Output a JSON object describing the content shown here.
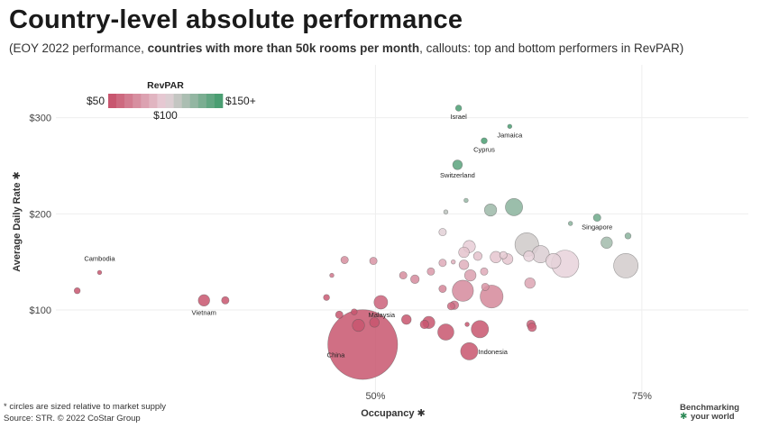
{
  "title": "Country-level absolute performance",
  "subtitle_plain": "(EOY 2022 performance, ",
  "subtitle_bold": "countries with more than 50k rooms per  month",
  "subtitle_tail": ", callouts: top and bottom performers in RevPAR)",
  "footnote_1": "* circles are sized relative to market supply",
  "footnote_2": "Source: STR. © 2022 CoStar Group",
  "brand_line1": "Benchmarking",
  "brand_line2": "your world",
  "brand_mark": "✱",
  "colors": {
    "low": "#c8566f",
    "mid": "#e8d2da",
    "high": "#4a9e72"
  },
  "legend": {
    "title": "RevPAR",
    "min_label": "$50",
    "mid_label": "$100",
    "max_label": "$150+"
  },
  "chart_data": {
    "type": "scatter",
    "title": "Country-level absolute performance",
    "xlabel": "Occupancy ✱",
    "ylabel": "Average Daily Rate ✱",
    "xlim": [
      20,
      85
    ],
    "ylim": [
      10,
      355
    ],
    "x_ticks": [
      50,
      75
    ],
    "x_tick_labels": [
      "50%",
      "75%"
    ],
    "y_ticks": [
      100,
      200,
      300
    ],
    "y_tick_labels": [
      "$100",
      "$200",
      "$300"
    ],
    "grid": true,
    "size_meaning": "market supply",
    "color_meaning": "RevPAR",
    "points": [
      {
        "label": "Israel",
        "x": 57.8,
        "y": 310,
        "s": 2,
        "r": 180
      },
      {
        "label": "Jamaica",
        "x": 62.6,
        "y": 291,
        "s": 1,
        "r": 182
      },
      {
        "label": "Cyprus",
        "x": 60.2,
        "y": 276,
        "s": 2,
        "r": 166
      },
      {
        "label": "Switzerland",
        "x": 57.7,
        "y": 251,
        "s": 5,
        "r": 145
      },
      {
        "label": "",
        "x": 58.5,
        "y": 214,
        "s": 1,
        "r": 126
      },
      {
        "label": "",
        "x": 56.6,
        "y": 202,
        "s": 1,
        "r": 114
      },
      {
        "label": "",
        "x": 60.8,
        "y": 204,
        "s": 8,
        "r": 124
      },
      {
        "label": "",
        "x": 63.0,
        "y": 207,
        "s": 16,
        "r": 130
      },
      {
        "label": "Singapore",
        "x": 70.8,
        "y": 196,
        "s": 3,
        "r": 139
      },
      {
        "label": "",
        "x": 68.3,
        "y": 190,
        "s": 1,
        "r": 130
      },
      {
        "label": "",
        "x": 73.7,
        "y": 177,
        "s": 2,
        "r": 130
      },
      {
        "label": "",
        "x": 71.7,
        "y": 170,
        "s": 7,
        "r": 122
      },
      {
        "label": "",
        "x": 64.2,
        "y": 168,
        "s": 30,
        "r": 108
      },
      {
        "label": "",
        "x": 65.5,
        "y": 158,
        "s": 16,
        "r": 104
      },
      {
        "label": "",
        "x": 64.4,
        "y": 156,
        "s": 6,
        "r": 100
      },
      {
        "label": "",
        "x": 66.7,
        "y": 151,
        "s": 12,
        "r": 101
      },
      {
        "label": "",
        "x": 67.8,
        "y": 148,
        "s": 40,
        "r": 100
      },
      {
        "label": "",
        "x": 73.5,
        "y": 146,
        "s": 32,
        "r": 107
      },
      {
        "label": "",
        "x": 59.6,
        "y": 156,
        "s": 4,
        "r": 93
      },
      {
        "label": "",
        "x": 61.3,
        "y": 155,
        "s": 7,
        "r": 95
      },
      {
        "label": "",
        "x": 62.0,
        "y": 157,
        "s": 3,
        "r": 97
      },
      {
        "label": "",
        "x": 62.4,
        "y": 153,
        "s": 6,
        "r": 95
      },
      {
        "label": "",
        "x": 58.8,
        "y": 166,
        "s": 8,
        "r": 98
      },
      {
        "label": "",
        "x": 58.3,
        "y": 160,
        "s": 6,
        "r": 94
      },
      {
        "label": "",
        "x": 56.3,
        "y": 181,
        "s": 3,
        "r": 102
      },
      {
        "label": "",
        "x": 58.3,
        "y": 147,
        "s": 5,
        "r": 86
      },
      {
        "label": "",
        "x": 56.3,
        "y": 149,
        "s": 3,
        "r": 84
      },
      {
        "label": "",
        "x": 57.3,
        "y": 150,
        "s": 1,
        "r": 86
      },
      {
        "label": "",
        "x": 58.9,
        "y": 136,
        "s": 7,
        "r": 80
      },
      {
        "label": "",
        "x": 60.2,
        "y": 140,
        "s": 3,
        "r": 84
      },
      {
        "label": "",
        "x": 60.3,
        "y": 124,
        "s": 3,
        "r": 75
      },
      {
        "label": "",
        "x": 64.5,
        "y": 128,
        "s": 6,
        "r": 82
      },
      {
        "label": "",
        "x": 55.2,
        "y": 140,
        "s": 3,
        "r": 77
      },
      {
        "label": "",
        "x": 56.3,
        "y": 122,
        "s": 3,
        "r": 69
      },
      {
        "label": "",
        "x": 53.7,
        "y": 132,
        "s": 4,
        "r": 71
      },
      {
        "label": "",
        "x": 52.6,
        "y": 136,
        "s": 3,
        "r": 72
      },
      {
        "label": "",
        "x": 49.8,
        "y": 151,
        "s": 3,
        "r": 75
      },
      {
        "label": "",
        "x": 47.1,
        "y": 152,
        "s": 3,
        "r": 72
      },
      {
        "label": "",
        "x": 45.9,
        "y": 136,
        "s": 1,
        "r": 63
      },
      {
        "label": "",
        "x": 45.4,
        "y": 113,
        "s": 2,
        "r": 52
      },
      {
        "label": "",
        "x": 46.6,
        "y": 95,
        "s": 3,
        "r": 45
      },
      {
        "label": "",
        "x": 48.0,
        "y": 98,
        "s": 2,
        "r": 47
      },
      {
        "label": "",
        "x": 58.2,
        "y": 120,
        "s": 24,
        "r": 71
      },
      {
        "label": "",
        "x": 60.9,
        "y": 114,
        "s": 28,
        "r": 70
      },
      {
        "label": "",
        "x": 50.5,
        "y": 108,
        "s": 10,
        "r": 55
      },
      {
        "label": "",
        "x": 57.1,
        "y": 104,
        "s": 3,
        "r": 59
      },
      {
        "label": "",
        "x": 57.4,
        "y": 105,
        "s": 4,
        "r": 61
      },
      {
        "label": "",
        "x": 52.9,
        "y": 90,
        "s": 5,
        "r": 48
      },
      {
        "label": "",
        "x": 54.6,
        "y": 85,
        "s": 4,
        "r": 46
      },
      {
        "label": "",
        "x": 55.0,
        "y": 87,
        "s": 8,
        "r": 48
      },
      {
        "label": "",
        "x": 56.6,
        "y": 77,
        "s": 14,
        "r": 44
      },
      {
        "label": "",
        "x": 58.6,
        "y": 85,
        "s": 1,
        "r": 50
      },
      {
        "label": "",
        "x": 59.8,
        "y": 80,
        "s": 16,
        "r": 48
      },
      {
        "label": "",
        "x": 64.6,
        "y": 85,
        "s": 4,
        "r": 55
      },
      {
        "label": "",
        "x": 64.7,
        "y": 82,
        "s": 4,
        "r": 53
      },
      {
        "label": "Malaysia",
        "x": 49.9,
        "y": 87,
        "s": 5,
        "r": 43
      },
      {
        "label": "",
        "x": 48.4,
        "y": 84,
        "s": 8,
        "r": 41
      },
      {
        "label": "Indonesia",
        "x": 58.8,
        "y": 57,
        "s": 16,
        "r": 34
      },
      {
        "label": "China",
        "x": 48.8,
        "y": 64,
        "s": 260,
        "r": 31
      },
      {
        "label": "Vietnam",
        "x": 33.9,
        "y": 110,
        "s": 7,
        "r": 37
      },
      {
        "label": "",
        "x": 35.9,
        "y": 110,
        "s": 3,
        "r": 39
      },
      {
        "label": "Cambodia",
        "x": 24.1,
        "y": 139,
        "s": 1,
        "r": 33
      },
      {
        "label": "",
        "x": 22.0,
        "y": 120,
        "s": 2,
        "r": 26
      }
    ]
  }
}
